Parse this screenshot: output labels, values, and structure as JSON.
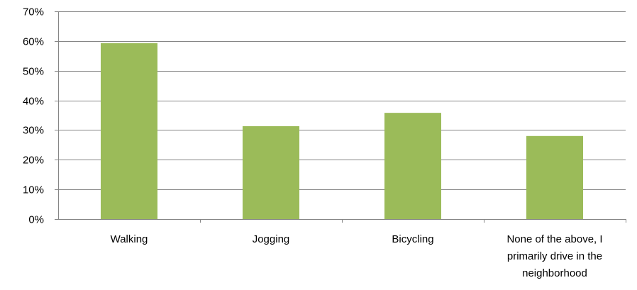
{
  "chart_data": {
    "type": "bar",
    "categories": [
      "Walking",
      "Jogging",
      "Bicycling",
      "None of the above, I primarily drive in the neighborhood"
    ],
    "category_label_lines": [
      [
        "Walking"
      ],
      [
        "Jogging"
      ],
      [
        "Bicycling"
      ],
      [
        "None of the above, I",
        "primarily drive in the",
        "neighborhood"
      ]
    ],
    "values": [
      0.593,
      0.313,
      0.358,
      0.28
    ],
    "ylim": [
      0,
      0.7
    ],
    "yticks": [
      0,
      0.1,
      0.2,
      0.3,
      0.4,
      0.5,
      0.6,
      0.7
    ],
    "ytick_labels": [
      "0%",
      "10%",
      "20%",
      "30%",
      "40%",
      "50%",
      "60%",
      "70%"
    ],
    "grid": true,
    "legend": "none",
    "bar_color": "#9bbb59",
    "grid_color": "#868686"
  }
}
